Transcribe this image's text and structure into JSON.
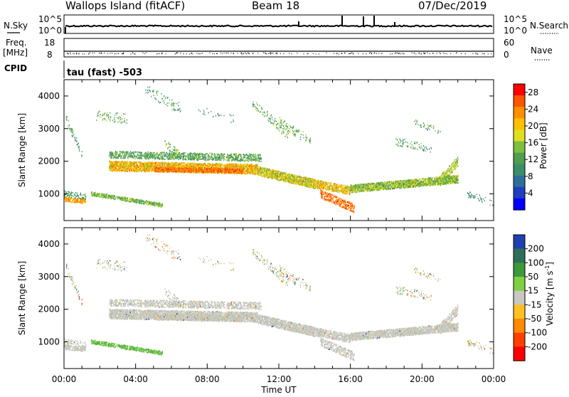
{
  "header": {
    "station": "Wallops Island (fitACF)",
    "beam": "Beam 18",
    "date": "07/Dec/2019"
  },
  "top_panels": {
    "nsky_label": "N.Sky",
    "nsky_ticks": [
      "10^5",
      "10^0"
    ],
    "nsearch_label": "N.Search",
    "nsearch_ticks": [
      "10^5",
      "10^0"
    ],
    "freq_label": "Freq.",
    "freq_unit": "[MHz]",
    "freq_ticks": [
      "18",
      "8"
    ],
    "nave_label": "Nave",
    "nave_ticks": [
      "60",
      "0"
    ],
    "cpid_label": "CPID",
    "cpid_text": "tau (fast) -503"
  },
  "chart_data": [
    {
      "type": "heatmap",
      "title": "",
      "xlabel": "Time UT",
      "ylabel": "Slant Range [km]",
      "xlim": [
        0,
        24
      ],
      "ylim": [
        180,
        4500
      ],
      "x_ticks": [
        "00:00",
        "04:00",
        "08:00",
        "12:00",
        "16:00",
        "20:00",
        "00:00"
      ],
      "y_ticks": [
        1000,
        2000,
        3000,
        4000
      ],
      "colorbar": {
        "label": "Power [dB]",
        "ticks": [
          4,
          8,
          12,
          16,
          20,
          24,
          28
        ],
        "range": [
          0,
          30
        ],
        "colors": [
          "#0000ff",
          "#1f3fbf",
          "#2e6f9a",
          "#3a8f6a",
          "#4f9f4f",
          "#7fbf3f",
          "#dfdf1f",
          "#ffc000",
          "#ff9000",
          "#ff5500",
          "#ff0000"
        ]
      },
      "features": [
        {
          "name": "main echo band",
          "t_start": 2.5,
          "t_end": 16.0,
          "range_start_km": 1900,
          "range_end_km": 1200,
          "power_db": 22
        },
        {
          "name": "late echo band",
          "t_start": 16.0,
          "t_end": 22.0,
          "range_start_km": 1200,
          "range_end_km": 1500,
          "power_db": 16
        },
        {
          "name": "near range echoes",
          "t_start": 0.0,
          "t_end": 1.2,
          "range_km": 800,
          "power_db": 22
        },
        {
          "name": "low range band",
          "t_start": 1.5,
          "t_end": 5.5,
          "range_start_km": 1000,
          "range_end_km": 600,
          "power_db": 14
        },
        {
          "name": "strong patch",
          "t_start": 14.5,
          "t_end": 16.2,
          "range_start_km": 900,
          "range_end_km": 500,
          "power_db": 26
        }
      ]
    },
    {
      "type": "heatmap",
      "title": "",
      "xlabel": "Time UT",
      "ylabel": "Slant Range [km]",
      "xlim": [
        0,
        24
      ],
      "ylim": [
        180,
        4500
      ],
      "x_ticks": [
        "00:00",
        "04:00",
        "08:00",
        "12:00",
        "16:00",
        "20:00",
        "00:00"
      ],
      "y_ticks": [
        1000,
        2000,
        3000,
        4000
      ],
      "colorbar": {
        "label": "Velocity [m s^-1]",
        "ticks": [
          200,
          100,
          50,
          15,
          -15,
          -50,
          -100,
          -200
        ],
        "colors": [
          "#2040b0",
          "#2f6f5a",
          "#3c9a3c",
          "#7fd040",
          "#c8c8c0",
          "#ffc020",
          "#ff8a00",
          "#ff4000",
          "#ff0000"
        ]
      },
      "features": [
        {
          "name": "ground scatter band",
          "t_start": 2.5,
          "t_end": 22.0,
          "velocity_mps": 0
        },
        {
          "name": "low range positive band",
          "t_start": 1.5,
          "t_end": 5.5,
          "velocity_mps": 40
        }
      ]
    }
  ]
}
